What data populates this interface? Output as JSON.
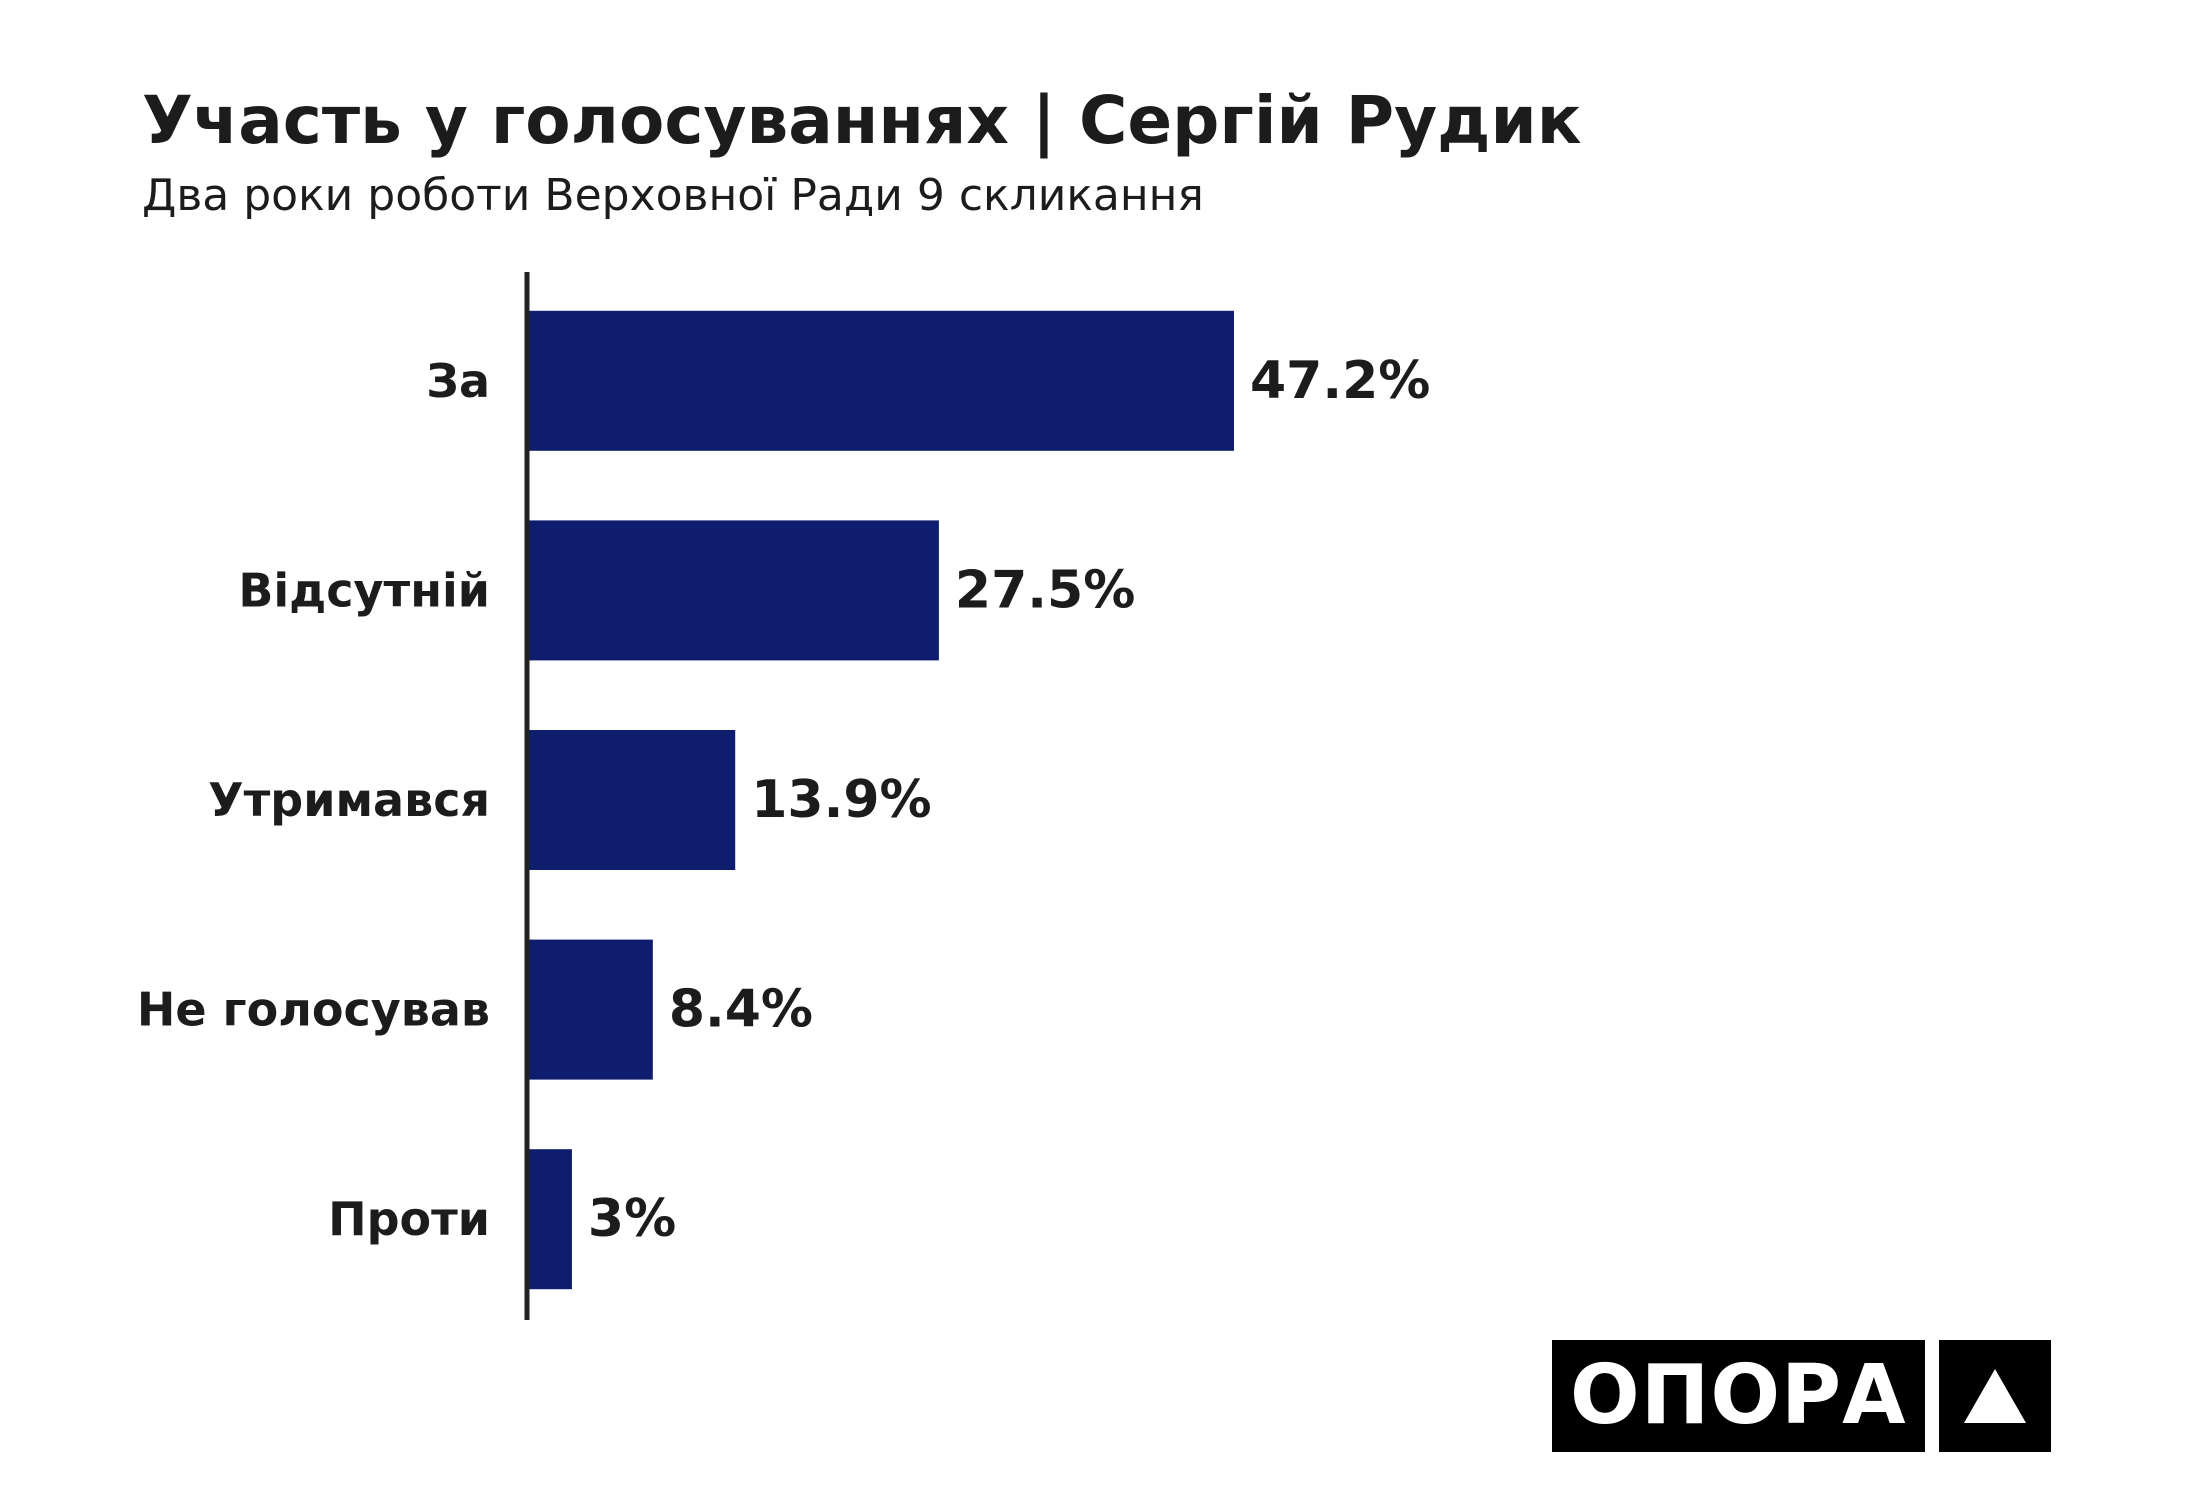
{
  "colors": {
    "bar": "#0f1d6e",
    "text": "#1c1c1c",
    "axis": "#222222",
    "logo_bg": "#000000",
    "logo_fg": "#ffffff"
  },
  "logo": {
    "word": "ОПОРА",
    "icon": "triangle-up-icon"
  },
  "chart_data": {
    "type": "bar",
    "orientation": "horizontal",
    "title": "Участь у голосуваннях | Сергій Рудик",
    "subtitle": "Два роки роботи Верховної Ради 9 скликання",
    "categories": [
      "За",
      "Відсутній",
      "Утримався",
      "Не голосував",
      "Проти"
    ],
    "values": [
      47.2,
      27.5,
      13.9,
      8.4,
      3
    ],
    "value_labels": [
      "47.2%",
      "27.5%",
      "13.9%",
      "8.4%",
      "3%"
    ],
    "unit": "%",
    "xlim": [
      0,
      50
    ],
    "grid": false,
    "legend": "none"
  }
}
